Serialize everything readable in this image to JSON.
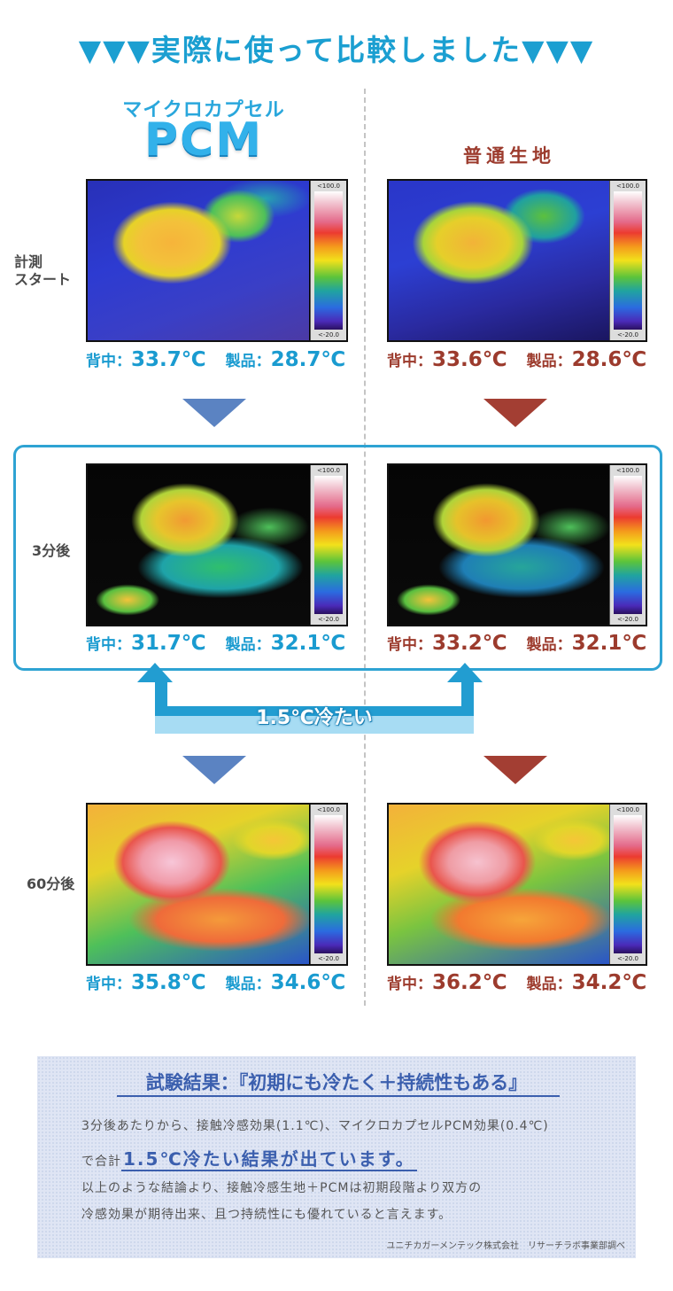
{
  "header": {
    "title": "▼▼▼実際に使って比較しました▼▼▼"
  },
  "columns": {
    "pcm": {
      "logo_top": "マイクロカプセル",
      "logo_main": "PCM"
    },
    "normal": {
      "label": "普通生地"
    }
  },
  "scale": {
    "top": "<100.0",
    "bottom": "<-20.0"
  },
  "rows": [
    {
      "label": "計測\nスタート",
      "pcm": {
        "back_label": "背中：",
        "back": "33.7℃",
        "product_label": "製品：",
        "product": "28.7℃"
      },
      "normal": {
        "back_label": "背中：",
        "back": "33.6℃",
        "product_label": "製品：",
        "product": "28.6℃"
      }
    },
    {
      "label": "3分後",
      "pcm": {
        "back_label": "背中：",
        "back": "31.7℃",
        "product_label": "製品：",
        "product": "32.1℃"
      },
      "normal": {
        "back_label": "背中：",
        "back": "33.2℃",
        "product_label": "製品：",
        "product": "32.1℃"
      }
    },
    {
      "label": "60分後",
      "pcm": {
        "back_label": "背中：",
        "back": "35.8℃",
        "product_label": "製品：",
        "product": "34.6℃"
      },
      "normal": {
        "back_label": "背中：",
        "back": "36.2℃",
        "product_label": "製品：",
        "product": "34.2℃"
      }
    }
  ],
  "comparison": {
    "text": "1.5℃冷たい"
  },
  "result": {
    "title": "試験結果：『初期にも冷たく＋持続性もある』",
    "line1": "3分後あたりから、接触冷感効果(1.1℃)、マイクロカプセルPCM効果(0.4℃)",
    "line2_prefix": "で合計",
    "line2_highlight": "1.5℃冷たい結果が出ています。",
    "line3": "以上のような結論より、接触冷感生地＋PCMは初期段階より双方の",
    "line4": "冷感効果が期待出来、且つ持続性にも優れていると言えます。",
    "credit": "ユニチカガーメンテック株式会社　リサーチラボ事業部調べ"
  },
  "colors": {
    "pcm_text": "#1a9bd0",
    "normal_text": "#9c3b2d",
    "pcm_arrow": "#5b83c2",
    "normal_arrow": "#a33e33",
    "frame": "#2ea3d3"
  }
}
